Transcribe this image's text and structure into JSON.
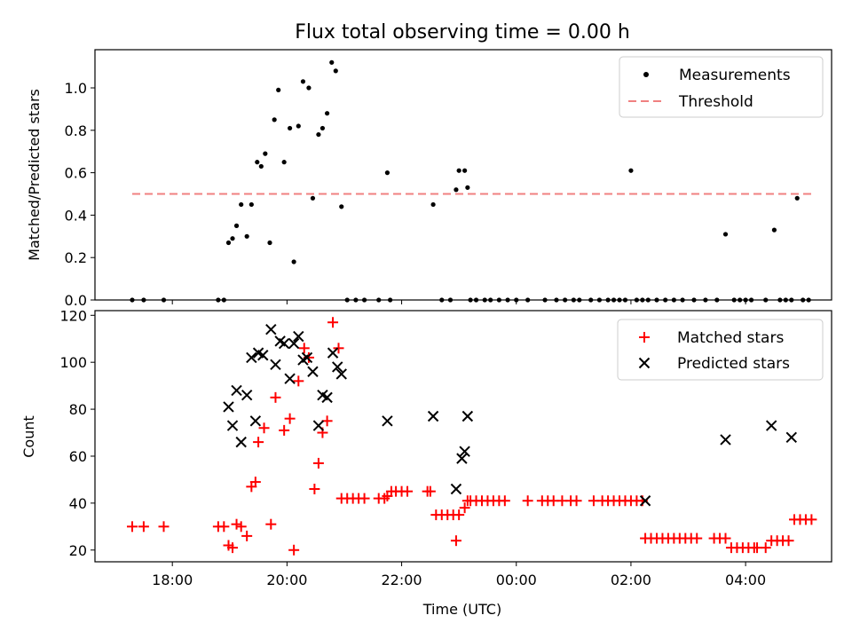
{
  "chart_data": [
    {
      "type": "scatter",
      "title": "Flux total observing time = 0.00 h",
      "ylabel": "Matched/Predicted stars",
      "xlabel": "",
      "ylim": [
        0,
        1.18
      ],
      "yticks": [
        0.0,
        0.2,
        0.4,
        0.6,
        0.8,
        1.0
      ],
      "ytick_labels": [
        "0.0",
        "0.2",
        "0.4",
        "0.6",
        "0.8",
        "1.0"
      ],
      "legend_position": "top-right",
      "threshold": {
        "name": "Threshold",
        "value": 0.5,
        "x_start": 17.3,
        "x_end": 29.2,
        "color": "#f08080"
      },
      "series": [
        {
          "name": "Measurements",
          "color": "#000000",
          "x": [
            17.3,
            17.5,
            17.85,
            18.8,
            18.9,
            18.98,
            19.05,
            19.12,
            19.2,
            19.3,
            19.38,
            19.48,
            19.55,
            19.62,
            19.7,
            19.78,
            19.85,
            19.95,
            20.05,
            20.12,
            20.2,
            20.28,
            20.38,
            20.45,
            20.55,
            20.62,
            20.7,
            20.78,
            20.85,
            20.95,
            21.05,
            21.2,
            21.35,
            21.6,
            21.75,
            21.8,
            22.55,
            22.7,
            22.85,
            22.95,
            23.0,
            23.1,
            23.15,
            23.2,
            23.3,
            23.45,
            23.55,
            23.7,
            23.85,
            24.0,
            24.2,
            24.5,
            24.7,
            24.85,
            25.0,
            25.1,
            25.3,
            25.45,
            25.6,
            25.7,
            25.8,
            25.9,
            26.0,
            26.1,
            26.2,
            26.3,
            26.45,
            26.6,
            26.75,
            26.9,
            27.1,
            27.3,
            27.5,
            27.65,
            27.8,
            27.9,
            28.0,
            28.1,
            28.35,
            28.5,
            28.6,
            28.7,
            28.8,
            28.9,
            29.0,
            29.1
          ],
          "y": [
            0,
            0,
            0,
            0,
            0,
            0.27,
            0.29,
            0.35,
            0.45,
            0.3,
            0.45,
            0.65,
            0.63,
            0.69,
            0.27,
            0.85,
            0.99,
            0.65,
            0.81,
            0.18,
            0.82,
            1.03,
            1.0,
            0.48,
            0.78,
            0.81,
            0.88,
            1.12,
            1.08,
            0.44,
            0,
            0,
            0,
            0,
            0.6,
            0,
            0.45,
            0,
            0,
            0.52,
            0.61,
            0.61,
            0.53,
            0,
            0,
            0,
            0,
            0,
            0,
            0,
            0,
            0,
            0,
            0,
            0,
            0,
            0,
            0,
            0,
            0,
            0,
            0,
            0.61,
            0,
            0,
            0,
            0,
            0,
            0,
            0,
            0,
            0,
            0,
            0.31,
            0,
            0,
            0,
            0,
            0,
            0.33,
            0,
            0,
            0,
            0.48,
            0,
            0
          ]
        }
      ]
    },
    {
      "type": "scatter",
      "title": "",
      "xlabel": "Time (UTC)",
      "ylabel": "Count",
      "xlim": [
        16.65,
        29.5
      ],
      "ylim": [
        15,
        122
      ],
      "yticks": [
        20,
        40,
        60,
        80,
        100,
        120
      ],
      "ytick_labels": [
        "20",
        "40",
        "60",
        "80",
        "100",
        "120"
      ],
      "xticks": [
        18,
        20,
        22,
        24,
        26,
        28
      ],
      "xtick_labels": [
        "18:00",
        "20:00",
        "22:00",
        "00:00",
        "02:00",
        "04:00"
      ],
      "legend_position": "top-right",
      "series": [
        {
          "name": "Matched stars",
          "color": "#ff0000",
          "marker": "plus",
          "x": [
            17.3,
            17.5,
            17.85,
            18.8,
            18.9,
            18.98,
            19.05,
            19.12,
            19.2,
            19.3,
            19.38,
            19.45,
            19.5,
            19.6,
            19.72,
            19.8,
            19.95,
            20.05,
            20.12,
            20.2,
            20.3,
            20.38,
            20.48,
            20.55,
            20.62,
            20.7,
            20.8,
            20.9,
            20.95,
            21.05,
            21.15,
            21.25,
            21.35,
            21.6,
            21.7,
            21.75,
            21.82,
            21.9,
            22.0,
            22.1,
            22.45,
            22.5,
            22.6,
            22.7,
            22.8,
            22.9,
            22.95,
            23.0,
            23.1,
            23.15,
            23.2,
            23.3,
            23.4,
            23.5,
            23.6,
            23.7,
            23.8,
            24.2,
            24.45,
            24.55,
            24.65,
            24.8,
            24.95,
            25.05,
            25.35,
            25.5,
            25.6,
            25.7,
            25.8,
            25.9,
            26.0,
            26.1,
            26.2,
            26.25,
            26.35,
            26.45,
            26.55,
            26.65,
            26.75,
            26.85,
            26.95,
            27.05,
            27.15,
            27.45,
            27.55,
            27.65,
            27.75,
            27.85,
            27.95,
            28.05,
            28.15,
            28.2,
            28.35,
            28.45,
            28.55,
            28.65,
            28.75,
            28.85,
            28.95,
            29.05,
            29.15
          ],
          "y": [
            30,
            30,
            30,
            30,
            30,
            22,
            21,
            31,
            30,
            26,
            47,
            49,
            66,
            72,
            31,
            85,
            71,
            76,
            20,
            92,
            106,
            102,
            46,
            57,
            70,
            75,
            117,
            106,
            42,
            42,
            42,
            42,
            42,
            42,
            42,
            43,
            45,
            45,
            45,
            45,
            45,
            45,
            35,
            35,
            35,
            35,
            24,
            35,
            38,
            41,
            41,
            41,
            41,
            41,
            41,
            41,
            41,
            41,
            41,
            41,
            41,
            41,
            41,
            41,
            41,
            41,
            41,
            41,
            41,
            41,
            41,
            41,
            41,
            25,
            25,
            25,
            25,
            25,
            25,
            25,
            25,
            25,
            25,
            25,
            25,
            25,
            21,
            21,
            21,
            21,
            21,
            21,
            21,
            24,
            24,
            24,
            24,
            33,
            33,
            33,
            33
          ]
        },
        {
          "name": "Predicted stars",
          "color": "#000000",
          "marker": "x",
          "x": [
            18.98,
            19.05,
            19.12,
            19.2,
            19.3,
            19.38,
            19.45,
            19.5,
            19.58,
            19.72,
            19.8,
            19.88,
            19.95,
            20.05,
            20.12,
            20.2,
            20.28,
            20.35,
            20.45,
            20.55,
            20.62,
            20.7,
            20.8,
            20.88,
            20.95,
            21.75,
            22.55,
            22.95,
            23.05,
            23.1,
            23.15,
            26.25,
            27.65,
            28.45,
            28.8
          ],
          "y": [
            81,
            73,
            88,
            66,
            86,
            102,
            75,
            104,
            103,
            114,
            99,
            109,
            108,
            93,
            108,
            111,
            101,
            102,
            96,
            73,
            86,
            85,
            104,
            98,
            95,
            75,
            77,
            46,
            59,
            62,
            77,
            41,
            67,
            73,
            68
          ]
        }
      ]
    }
  ]
}
